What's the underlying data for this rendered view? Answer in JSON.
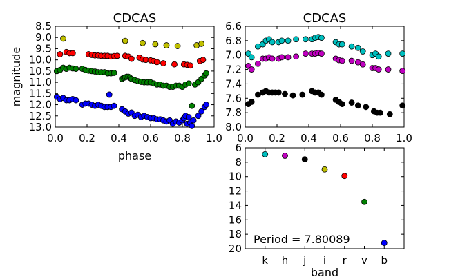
{
  "chart_data": [
    {
      "type": "scatter",
      "panel": "phase-optical",
      "title": "CDCAS",
      "xlabel": "phase",
      "ylabel": "magnitude",
      "xlim": [
        0.0,
        1.0
      ],
      "ylim": [
        13.0,
        8.5
      ],
      "y_inverted": true,
      "xticks": [
        "0.0",
        "0.2",
        "0.4",
        "0.6",
        "0.8",
        "1.0"
      ],
      "yticks": [
        "8.5",
        "9.0",
        "9.5",
        "10.0",
        "10.5",
        "11.0",
        "11.5",
        "12.0",
        "12.5",
        "13.0"
      ],
      "series": [
        {
          "band": "i",
          "color": "#bfbf00",
          "x": [
            0.05,
            0.44,
            0.55,
            0.63,
            0.7,
            0.77,
            0.89,
            0.92
          ],
          "y": [
            9.05,
            9.15,
            9.25,
            9.3,
            9.35,
            9.38,
            9.35,
            9.28
          ]
        },
        {
          "band": "r",
          "color": "#ff0000",
          "x": [
            0.03,
            0.07,
            0.09,
            0.11,
            0.21,
            0.23,
            0.25,
            0.27,
            0.29,
            0.31,
            0.33,
            0.35,
            0.37,
            0.39,
            0.44,
            0.46,
            0.48,
            0.53,
            0.55,
            0.57,
            0.6,
            0.62,
            0.64,
            0.68,
            0.75,
            0.81,
            0.83,
            0.85,
            0.91,
            0.93
          ],
          "y": [
            9.75,
            9.65,
            9.7,
            9.7,
            9.75,
            9.78,
            9.8,
            9.8,
            9.82,
            9.82,
            9.82,
            9.85,
            9.83,
            9.82,
            9.82,
            9.85,
            9.95,
            9.9,
            9.98,
            10.0,
            10.02,
            10.05,
            10.1,
            10.15,
            10.2,
            10.2,
            10.22,
            10.25,
            10.05,
            10.0
          ]
        },
        {
          "band": "v",
          "color": "#007f00",
          "x": [
            0.01,
            0.03,
            0.05,
            0.07,
            0.09,
            0.11,
            0.13,
            0.17,
            0.19,
            0.21,
            0.23,
            0.25,
            0.27,
            0.29,
            0.31,
            0.33,
            0.35,
            0.37,
            0.42,
            0.43,
            0.44,
            0.45,
            0.46,
            0.47,
            0.48,
            0.5,
            0.52,
            0.54,
            0.56,
            0.58,
            0.6,
            0.62,
            0.64,
            0.66,
            0.68,
            0.7,
            0.72,
            0.74,
            0.76,
            0.78,
            0.8,
            0.82,
            0.84,
            0.86,
            0.88,
            0.9,
            0.92,
            0.94,
            0.95
          ],
          "y": [
            10.5,
            10.45,
            10.35,
            10.4,
            10.35,
            10.38,
            10.4,
            10.4,
            10.45,
            10.48,
            10.5,
            10.52,
            10.55,
            10.55,
            10.55,
            10.6,
            10.6,
            10.58,
            10.85,
            10.8,
            10.78,
            10.75,
            10.75,
            10.8,
            10.85,
            10.9,
            10.95,
            10.98,
            11.0,
            11.0,
            11.0,
            11.05,
            11.1,
            11.1,
            11.15,
            11.15,
            11.2,
            11.2,
            11.15,
            11.15,
            11.2,
            11.1,
            11.05,
            12.05,
            11.1,
            11.0,
            10.85,
            10.7,
            10.6
          ]
        },
        {
          "band": "b",
          "color": "#0000ff",
          "x": [
            0.01,
            0.03,
            0.05,
            0.07,
            0.09,
            0.11,
            0.13,
            0.17,
            0.19,
            0.21,
            0.23,
            0.25,
            0.27,
            0.29,
            0.31,
            0.33,
            0.34,
            0.35,
            0.37,
            0.42,
            0.44,
            0.46,
            0.48,
            0.5,
            0.52,
            0.54,
            0.56,
            0.58,
            0.6,
            0.62,
            0.64,
            0.66,
            0.68,
            0.7,
            0.72,
            0.74,
            0.76,
            0.78,
            0.8,
            0.81,
            0.82,
            0.83,
            0.84,
            0.85,
            0.86,
            0.87,
            0.9,
            0.92,
            0.94,
            0.95
          ],
          "y": [
            11.65,
            11.75,
            11.7,
            11.8,
            11.8,
            11.75,
            11.8,
            12.0,
            11.95,
            11.95,
            12.0,
            12.05,
            12.0,
            12.05,
            12.1,
            12.1,
            11.55,
            12.1,
            12.05,
            12.2,
            12.3,
            12.4,
            12.35,
            12.5,
            12.45,
            12.55,
            12.5,
            12.55,
            12.6,
            12.6,
            12.65,
            12.65,
            12.7,
            12.75,
            12.7,
            12.85,
            12.75,
            12.8,
            12.7,
            12.6,
            12.5,
            12.85,
            12.55,
            12.8,
            12.95,
            12.7,
            12.5,
            12.3,
            12.1,
            12.0
          ]
        }
      ]
    },
    {
      "type": "scatter",
      "panel": "phase-infrared",
      "title": "CDCAS",
      "xlim": [
        0.0,
        1.0
      ],
      "ylim": [
        8.0,
        6.6
      ],
      "y_inverted": true,
      "xticks": [
        "0.0",
        "0.2",
        "0.4",
        "0.6",
        "0.8",
        "1.0"
      ],
      "yticks": [
        "6.6",
        "6.8",
        "7.0",
        "7.2",
        "7.4",
        "7.6",
        "7.8",
        "8.0"
      ],
      "series": [
        {
          "band": "k",
          "color": "#00bfbf",
          "x": [
            0.02,
            0.04,
            0.08,
            0.11,
            0.13,
            0.15,
            0.17,
            0.21,
            0.23,
            0.27,
            0.32,
            0.38,
            0.42,
            0.44,
            0.46,
            0.48,
            0.57,
            0.59,
            0.61,
            0.67,
            0.71,
            0.74,
            0.8,
            0.82,
            0.84,
            0.9,
            0.99
          ],
          "y": [
            6.98,
            7.03,
            6.88,
            6.85,
            6.8,
            6.78,
            6.82,
            6.82,
            6.8,
            6.8,
            6.78,
            6.78,
            6.78,
            6.76,
            6.75,
            6.76,
            6.82,
            6.85,
            6.85,
            6.88,
            6.9,
            6.95,
            7.0,
            6.98,
            7.02,
            6.98,
            6.98
          ]
        },
        {
          "band": "h",
          "color": "#bf00bf",
          "x": [
            0.02,
            0.04,
            0.08,
            0.11,
            0.13,
            0.15,
            0.17,
            0.21,
            0.23,
            0.27,
            0.32,
            0.38,
            0.42,
            0.44,
            0.46,
            0.48,
            0.57,
            0.59,
            0.61,
            0.67,
            0.71,
            0.74,
            0.8,
            0.82,
            0.84,
            0.9,
            0.99
          ],
          "y": [
            7.15,
            7.2,
            7.12,
            7.05,
            7.05,
            7.03,
            7.05,
            7.05,
            7.03,
            7.03,
            7.02,
            6.98,
            6.98,
            6.98,
            6.97,
            6.98,
            7.05,
            7.07,
            7.08,
            7.08,
            7.1,
            7.13,
            7.18,
            7.18,
            7.2,
            7.2,
            7.22
          ]
        },
        {
          "band": "j",
          "color": "#000000",
          "x": [
            0.02,
            0.04,
            0.08,
            0.11,
            0.13,
            0.15,
            0.17,
            0.19,
            0.21,
            0.25,
            0.3,
            0.36,
            0.42,
            0.44,
            0.46,
            0.48,
            0.57,
            0.59,
            0.61,
            0.67,
            0.71,
            0.76,
            0.81,
            0.83,
            0.85,
            0.91,
            0.99
          ],
          "y": [
            7.68,
            7.65,
            7.55,
            7.52,
            7.5,
            7.52,
            7.52,
            7.52,
            7.52,
            7.54,
            7.56,
            7.55,
            7.5,
            7.52,
            7.52,
            7.55,
            7.62,
            7.65,
            7.68,
            7.66,
            7.7,
            7.72,
            7.78,
            7.8,
            7.8,
            7.82,
            7.7
          ]
        }
      ]
    },
    {
      "type": "scatter",
      "panel": "band-period",
      "xlabel": "band",
      "ylim": [
        20,
        6
      ],
      "y_inverted": true,
      "yticks": [
        "6",
        "8",
        "10",
        "12",
        "14",
        "16",
        "18",
        "20"
      ],
      "categories": [
        "k",
        "h",
        "j",
        "i",
        "r",
        "v",
        "b"
      ],
      "values": [
        6.9,
        7.1,
        7.6,
        9.0,
        9.9,
        13.5,
        19.2
      ],
      "colors": [
        "#00bfbf",
        "#bf00bf",
        "#000000",
        "#bfbf00",
        "#ff0000",
        "#007f00",
        "#0000ff"
      ],
      "annotation": "Period = 7.80089"
    }
  ]
}
